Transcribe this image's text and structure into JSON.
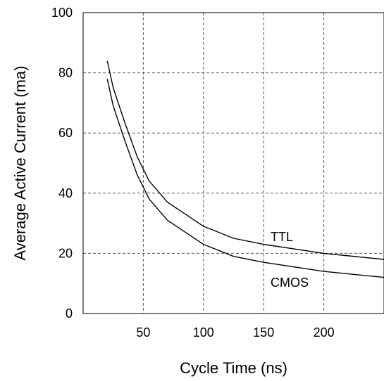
{
  "chart_data": {
    "type": "line",
    "title": "",
    "xlabel": "Cycle Time (ns)",
    "ylabel": "Average Active Current (ma)",
    "xlim": [
      0,
      250
    ],
    "ylim": [
      0,
      100
    ],
    "x_ticks": [
      50,
      100,
      150,
      200
    ],
    "y_ticks": [
      0,
      20,
      40,
      60,
      80,
      100
    ],
    "grid": "dashed",
    "series": [
      {
        "name": "TTL",
        "x": [
          20,
          25,
          35,
          45,
          55,
          70,
          100,
          125,
          150,
          200,
          250
        ],
        "y": [
          84,
          75,
          63,
          52,
          44,
          37,
          29,
          25,
          23,
          20,
          18
        ]
      },
      {
        "name": "CMOS",
        "x": [
          20,
          25,
          35,
          45,
          55,
          70,
          100,
          125,
          150,
          200,
          250
        ],
        "y": [
          78,
          69,
          57,
          46,
          38,
          31,
          23,
          19,
          17,
          14,
          12
        ]
      }
    ]
  }
}
